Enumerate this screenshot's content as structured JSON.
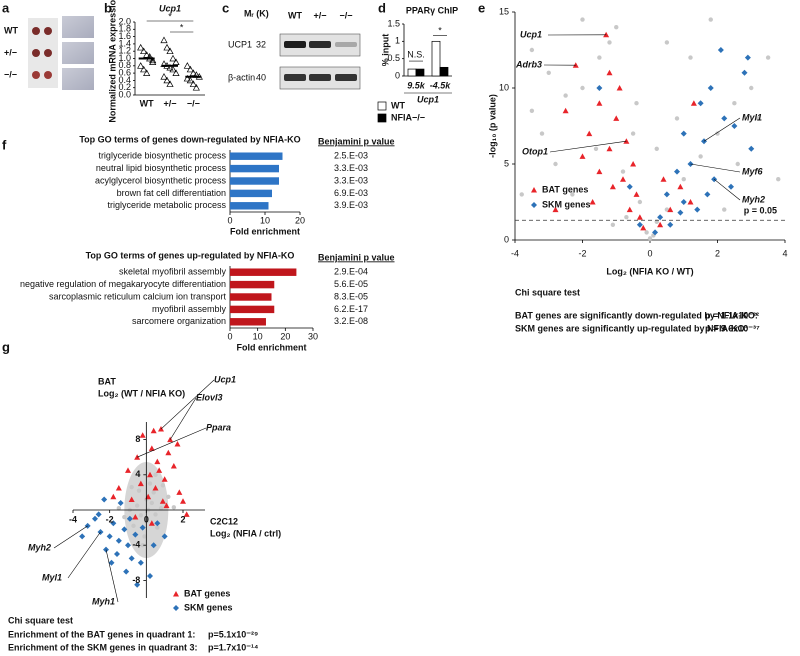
{
  "panel_labels": [
    "a",
    "b",
    "c",
    "d",
    "e",
    "f",
    "g"
  ],
  "panel_a": {
    "rows": [
      "WT",
      "+/−",
      "−/−"
    ]
  },
  "panel_c": {
    "mass_header": "Mᵣ (K)",
    "lanes": [
      "WT",
      "+/−",
      "−/−"
    ],
    "rows": [
      {
        "protein": "UCP1",
        "mass": 32
      },
      {
        "protein": "β-actin",
        "mass": 40
      }
    ]
  },
  "chart_data": [
    {
      "type": "strip",
      "title": "Ucp1",
      "ylabel": "Normalized mRNA expression",
      "categories": [
        "WT",
        "+/−",
        "−/−"
      ],
      "values": [
        [
          1.3,
          1.2,
          1.1,
          1.0,
          0.9,
          0.8,
          0.7,
          0.6,
          1.05,
          0.95
        ],
        [
          1.5,
          1.3,
          1.2,
          1.0,
          0.9,
          0.85,
          0.8,
          0.75,
          0.7,
          0.6,
          0.5,
          0.4,
          0.3
        ],
        [
          0.8,
          0.7,
          0.6,
          0.55,
          0.5,
          0.45,
          0.4,
          0.3,
          0.2
        ]
      ],
      "means": [
        1.0,
        0.8,
        0.5
      ],
      "ylim": [
        0,
        2
      ],
      "yticks": [
        {
          "value": 0,
          "label": "0.0"
        },
        {
          "value": 0.2,
          "label": "0.2"
        },
        {
          "value": 0.4,
          "label": "0.4"
        },
        {
          "value": 0.6,
          "label": "0.6"
        },
        {
          "value": 0.8,
          "label": "0.8"
        },
        {
          "value": 1,
          "label": "1.0"
        },
        {
          "value": 1.2,
          "label": "1.2"
        },
        {
          "value": 1.4,
          "label": "1.4"
        },
        {
          "value": 1.6,
          "label": "1.6"
        },
        {
          "value": 1.8,
          "label": "1.8"
        },
        {
          "value": 2,
          "label": "2.0"
        }
      ],
      "annotations": [
        "*",
        "*"
      ]
    },
    {
      "type": "bar",
      "title": "PPARγ ChIP",
      "ylabel": "% input",
      "xlabel": "Ucp1",
      "categories": [
        "9.5k",
        "-4.5k"
      ],
      "series": [
        {
          "name": "WT",
          "color": "#ffffff",
          "values": [
            0.2,
            1.0
          ]
        },
        {
          "name": "NFIA−/−",
          "color": "#000000",
          "values": [
            0.2,
            0.25
          ]
        }
      ],
      "ylim": [
        0,
        1.5
      ],
      "yticks": [
        0,
        0.5,
        1,
        1.5
      ],
      "annotations": [
        "N.S.",
        "*"
      ]
    },
    {
      "type": "scatter",
      "xlabel": "Log₂ (NFIA KO / WT)",
      "ylabel": "-log₁₀ (p value)",
      "xlim": [
        -4,
        4
      ],
      "xticks": [
        -4,
        -2,
        0,
        2,
        4
      ],
      "ylim": [
        0,
        15
      ],
      "yticks": [
        0,
        5,
        10,
        15
      ],
      "threshold": 1.3,
      "threshold_label": "p = 0.05",
      "series": [
        {
          "color": "#c8c8c8",
          "marker": "circle",
          "x": [
            -3.5,
            -3,
            -2.5,
            -2,
            -1.5,
            -1,
            -0.5,
            -3.2,
            -2.8,
            -1.6,
            -0.8,
            -0.3,
            -0.1,
            0.1,
            0.2,
            0.5,
            1,
            1.5,
            2,
            2.5,
            3,
            3.5,
            0.5,
            1.2,
            -3.8,
            3.8,
            -2.3,
            2.6,
            0,
            -0.7,
            0.8,
            -1.2,
            1.8,
            -2,
            3.2,
            -3.5,
            0.2,
            -0.4,
            2.2,
            -1.1
          ],
          "y": [
            12.5,
            11,
            9.5,
            10,
            12,
            14,
            7,
            7,
            5,
            6,
            4.5,
            2.5,
            0.5,
            0.3,
            1.2,
            2,
            4,
            5.5,
            7,
            9,
            10,
            12,
            13,
            12,
            3,
            4,
            3,
            5,
            0.1,
            1.5,
            8,
            13,
            14.5,
            14.5,
            8,
            8.5,
            6,
            9,
            2,
            1
          ]
        },
        {
          "name": "BAT genes",
          "color": "#e8242a",
          "marker": "triangle",
          "x": [
            -1.3,
            -2.2,
            -1.2,
            -0.9,
            -1.5,
            -2.5,
            -1.0,
            -1.8,
            -0.7,
            -1.2,
            -2,
            -0.5,
            -1.5,
            -0.8,
            -0.4,
            -1.1,
            -0.6,
            -0.3,
            -0.2,
            0.3,
            0.6,
            0.9,
            1.2,
            -2.8,
            -1.7,
            0.4,
            1.3
          ],
          "y": [
            13.5,
            11.5,
            11,
            10,
            9,
            8.5,
            8,
            7,
            6.5,
            6,
            5.5,
            5,
            4.5,
            4,
            3,
            3.5,
            2,
            1.5,
            0.8,
            1,
            2,
            3.5,
            2.5,
            2,
            2.5,
            4,
            9
          ]
        },
        {
          "name": "SKM genes",
          "color": "#2d72b8",
          "marker": "diamond",
          "x": [
            2.1,
            2.8,
            1.8,
            1.5,
            2.2,
            1.0,
            1.6,
            2.5,
            1.2,
            0.8,
            1.9,
            0.5,
            1.0,
            1.4,
            0.3,
            0.6,
            2.4,
            -1.5,
            -0.6,
            -0.3,
            0.15,
            3.0,
            1.7,
            0.9,
            2.9
          ],
          "y": [
            12.5,
            11,
            10,
            9,
            8,
            7,
            6.5,
            7.5,
            5,
            4.5,
            4,
            3,
            2.5,
            2,
            1.5,
            1,
            3.5,
            10,
            3.5,
            1,
            0.5,
            6,
            3,
            1.8,
            12
          ]
        }
      ],
      "annotations": [
        "Ucp1",
        "Adrb3",
        "Otop1",
        "Myl1",
        "Myf6",
        "Myh2"
      ],
      "stats": {
        "title": "Chi square test",
        "lines": [
          {
            "text": "BAT genes are significantly down-regulated by NFIA-KO:",
            "p": "p = 1.1x10⁻²²"
          },
          {
            "text": "SKM genes are significantly up-regulated by NFIA-KO:",
            "p": "p = 9.6x10⁻³⁷"
          }
        ]
      }
    },
    {
      "type": "barh",
      "title": "Top GO terms of genes down-regulated by NFIA-KO",
      "xlabel": "Fold enrichment",
      "categories": [
        "triglyceride biosynthetic process",
        "neutral lipid biosynthetic process",
        "acylglycerol biosynthetic process",
        "brown fat cell differentiation",
        "triglyceride metabolic process"
      ],
      "values": [
        15,
        14,
        14,
        12,
        11
      ],
      "color": "#2e75c6",
      "xlim": [
        0,
        20
      ],
      "xticks": [
        0,
        10,
        20
      ],
      "p_header": "Benjamini p value",
      "p_values": [
        "2.5.E-03",
        "3.3.E-03",
        "3.3.E-03",
        "6.9.E-03",
        "3.9.E-03"
      ]
    },
    {
      "type": "barh",
      "title": "Top GO terms of genes up-regulated by NFIA-KO",
      "xlabel": "Fold enrichment",
      "categories": [
        "skeletal myofibril assembly",
        "negative regulation of megakaryocyte differentiation",
        "sarcoplasmic reticulum calcium ion transport",
        "myofibril assembly",
        "sarcomere organization"
      ],
      "values": [
        24,
        16,
        15,
        16,
        13
      ],
      "color": "#c0161c",
      "xlim": [
        0,
        30
      ],
      "xticks": [
        0,
        10,
        20,
        30
      ],
      "p_header": "Benjamini p value",
      "p_values": [
        "2.9.E-04",
        "5.6.E-05",
        "8.3.E-05",
        "6.2.E-17",
        "3.2.E-08"
      ]
    },
    {
      "type": "quadrant",
      "ylabel_lines": [
        "BAT",
        "Log₂ (WT / NFIA KO)"
      ],
      "xlabel_lines": [
        "C2C12",
        "Log₂ (NFIA / ctrl)"
      ],
      "xlim": [
        -4,
        3.2
      ],
      "xticks": [
        -4,
        -2,
        0,
        2
      ],
      "ylim": [
        -10,
        10
      ],
      "yticks": [
        8,
        4,
        -4,
        -8
      ],
      "series": [
        {
          "color": "#c8c8c8",
          "marker": "circle",
          "x": [
            -0.5,
            0.5,
            0.3,
            -0.3,
            0,
            0.8,
            -0.9,
            0,
            0.4,
            -0.4,
            0.6,
            -0.7,
            1.2,
            -1.2,
            0.2,
            -0.1,
            1.5,
            -1.5,
            0.9,
            -0.8,
            0.1,
            0.5,
            -0.2
          ],
          "y": [
            0.5,
            -0.5,
            0.8,
            -0.6,
            1.2,
            0.2,
            0,
            -1.3,
            2,
            2.2,
            -2,
            -1.8,
            1.5,
            -0.8,
            3,
            -3,
            0.3,
            0.2,
            2.8,
            2.6,
            0,
            4,
            -4
          ]
        },
        {
          "name": "BAT genes",
          "color": "#e8242a",
          "marker": "triangle",
          "x": [
            0.8,
            1.7,
            0.3,
            1.2,
            -0.5,
            0.6,
            1.5,
            -1,
            0.2,
            1,
            -0.3,
            0.5,
            1.8,
            -1.5,
            0.1,
            0.9,
            -0.8,
            2,
            1.3,
            -0.2,
            0.4,
            1.1,
            -1.8,
            0.7,
            -0.6,
            0.3,
            2.2
          ],
          "y": [
            9.2,
            7.5,
            7,
            6.5,
            6,
            5.5,
            5,
            4.5,
            4,
            3.5,
            3,
            2.5,
            2,
            2.5,
            1.5,
            1,
            1.2,
            1,
            8,
            8.5,
            9,
            0.5,
            1.5,
            4.5,
            -0.8,
            -1.5,
            -0.5
          ]
        },
        {
          "name": "SKM genes",
          "color": "#2d72b8",
          "marker": "diamond",
          "x": [
            -3.2,
            -2.5,
            -2,
            -1.5,
            -1,
            -2.8,
            -1.8,
            -1.2,
            -0.6,
            -2.2,
            -1.6,
            -0.8,
            -0.3,
            -1.1,
            -0.5,
            -3.5,
            -2.6,
            -0.9,
            0.4,
            1,
            -0.2,
            0.6,
            -1.4,
            -2.3,
            0.2,
            -1.9
          ],
          "y": [
            -1.8,
            -2.5,
            -3,
            -3.5,
            -4,
            -1,
            -1.5,
            -2.2,
            -2.8,
            -4.5,
            -5,
            -5.5,
            -6,
            -7,
            -8.5,
            -3,
            -0.5,
            -1,
            -4,
            -3,
            -2,
            -1.5,
            0.8,
            1.2,
            -7.5,
            -6
          ]
        }
      ],
      "annotations": [
        "Ucp1",
        "Elovl3",
        "Ppara",
        "Myh2",
        "Myl1",
        "Myh1"
      ],
      "stats": {
        "title": "Chi square test",
        "lines": [
          {
            "text": "Enrichment of the BAT genes in quadrant 1:",
            "p": "p=5.1x10⁻²⁹"
          },
          {
            "text": "Enrichment of the SKM genes in quadrant 3:",
            "p": "p=1.7x10⁻¹⁴"
          }
        ]
      }
    }
  ]
}
